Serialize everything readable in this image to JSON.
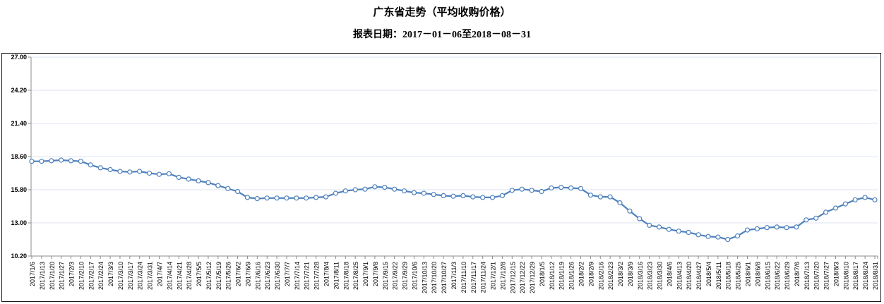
{
  "title": "广东省走势（平均收购价格）",
  "subtitle": "报表日期：2017－01－06至2018－08－31",
  "chart_data": {
    "type": "line",
    "title": "广东省走势（平均收购价格）",
    "subtitle": "报表日期：2017－01－06至2018－08－31",
    "xlabel": "",
    "ylabel": "",
    "ylim": [
      10.2,
      27.0
    ],
    "y_ticks": [
      10.2,
      13.0,
      15.8,
      18.6,
      21.4,
      24.2,
      27.0
    ],
    "y_tick_labels": [
      "10.20",
      "13.00",
      "15.80",
      "18.60",
      "21.40",
      "24.20",
      "27.00"
    ],
    "grid": "horizontal",
    "legend": "none",
    "x": [
      "2017/1/6",
      "2017/1/13",
      "2017/1/20",
      "2017/1/27",
      "2017/2/3",
      "2017/2/10",
      "2017/2/17",
      "2017/2/24",
      "2017/3/3",
      "2017/3/10",
      "2017/3/17",
      "2017/3/24",
      "2017/3/31",
      "2017/4/7",
      "2017/4/14",
      "2017/4/21",
      "2017/4/28",
      "2017/5/5",
      "2017/5/12",
      "2017/5/19",
      "2017/5/26",
      "2017/6/2",
      "2017/6/9",
      "2017/6/16",
      "2017/6/23",
      "2017/6/30",
      "2017/7/7",
      "2017/7/14",
      "2017/7/21",
      "2017/7/28",
      "2017/8/4",
      "2017/8/11",
      "2017/8/18",
      "2017/8/25",
      "2017/9/1",
      "2017/9/8",
      "2017/9/15",
      "2017/9/22",
      "2017/9/29",
      "2017/10/6",
      "2017/10/13",
      "2017/10/20",
      "2017/10/27",
      "2017/11/3",
      "2017/11/10",
      "2017/11/17",
      "2017/11/24",
      "2017/12/1",
      "2017/12/8",
      "2017/12/15",
      "2017/12/22",
      "2017/12/29",
      "2018/1/5",
      "2018/1/12",
      "2018/1/19",
      "2018/1/26",
      "2018/2/2",
      "2018/2/9",
      "2018/2/16",
      "2018/2/23",
      "2018/3/2",
      "2018/3/9",
      "2018/3/16",
      "2018/3/23",
      "2018/3/30",
      "2018/4/6",
      "2018/4/13",
      "2018/4/20",
      "2018/4/27",
      "2018/5/4",
      "2018/5/11",
      "2018/5/18",
      "2018/5/25",
      "2018/6/1",
      "2018/6/8",
      "2018/6/15",
      "2018/6/22",
      "2018/6/29",
      "2018/7/6",
      "2018/7/13",
      "2018/7/20",
      "2018/7/27",
      "2018/8/3",
      "2018/8/10",
      "2018/8/17",
      "2018/8/24",
      "2018/8/31"
    ],
    "values": [
      18.2,
      18.2,
      18.25,
      18.3,
      18.25,
      18.2,
      17.9,
      17.65,
      17.5,
      17.35,
      17.3,
      17.35,
      17.2,
      17.1,
      17.15,
      16.85,
      16.7,
      16.55,
      16.4,
      16.15,
      15.9,
      15.65,
      15.15,
      15.05,
      15.1,
      15.1,
      15.1,
      15.1,
      15.1,
      15.15,
      15.2,
      15.5,
      15.7,
      15.8,
      15.85,
      16.05,
      16.0,
      15.85,
      15.7,
      15.55,
      15.5,
      15.4,
      15.3,
      15.25,
      15.3,
      15.2,
      15.15,
      15.15,
      15.3,
      15.75,
      15.85,
      15.75,
      15.65,
      15.95,
      16.0,
      15.95,
      15.9,
      15.35,
      15.2,
      15.2,
      14.7,
      14.0,
      13.35,
      12.8,
      12.65,
      12.45,
      12.3,
      12.2,
      12.0,
      11.85,
      11.8,
      11.6,
      11.9,
      12.4,
      12.5,
      12.6,
      12.65,
      12.6,
      12.65,
      13.25,
      13.4,
      13.9,
      14.25,
      14.6,
      14.95,
      15.15,
      14.95
    ],
    "line_color": "#4f81bd",
    "marker": "circle-open",
    "marker_fill": "#ffffff",
    "grid_color": "#dce6f1",
    "axis_color": "#8c8c8c",
    "frame_border_color": "#1a1a1a",
    "text_color": "#000000"
  }
}
